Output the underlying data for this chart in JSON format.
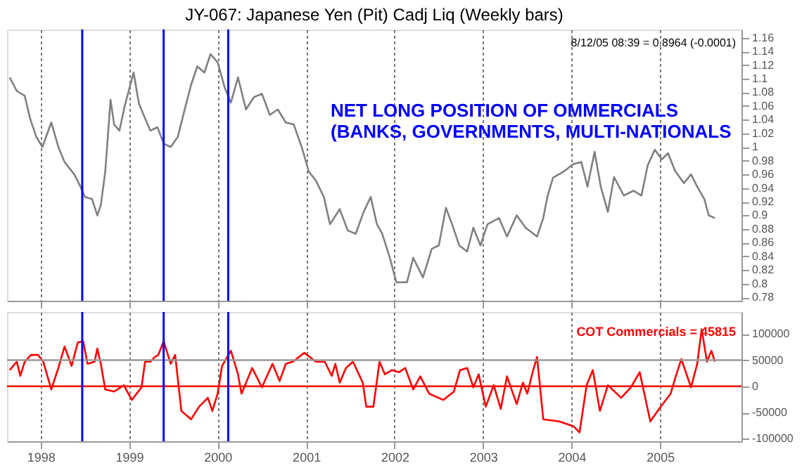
{
  "chart_data": [
    {
      "type": "line",
      "title": "JY-067:  Japanese Yen (Pit) Cadj Liq  (Weekly bars)",
      "annotations": [
        "8/12/05 08:39 = 0.8964 (-0.0001)",
        "NET LONG POSITION OF OMMERCIALS\n  (BANKS, GOVERNMENTS, MULTI-NATIONALS"
      ],
      "x": [
        1997.65,
        1997.73,
        1997.82,
        1997.88,
        1997.95,
        1998.02,
        1998.12,
        1998.2,
        1998.27,
        1998.38,
        1998.45,
        1998.5,
        1998.58,
        1998.64,
        1998.68,
        1998.73,
        1998.79,
        1998.83,
        1998.89,
        1998.95,
        1999.05,
        1999.11,
        1999.18,
        1999.24,
        1999.32,
        1999.39,
        1999.47,
        1999.55,
        1999.62,
        1999.7,
        1999.77,
        1999.85,
        1999.92,
        2000.0,
        2000.08,
        2000.15,
        2000.23,
        2000.32,
        2000.41,
        2000.5,
        2000.59,
        2000.68,
        2000.77,
        2000.86,
        2000.95,
        2001.03,
        2001.11,
        2001.2,
        2001.27,
        2001.38,
        2001.47,
        2001.56,
        2001.65,
        2001.73,
        2001.8,
        2001.86,
        2001.95,
        2002.02,
        2002.14,
        2002.21,
        2002.32,
        2002.42,
        2002.5,
        2002.58,
        2002.65,
        2002.73,
        2002.82,
        2002.89,
        2002.97,
        2003.05,
        2003.18,
        2003.27,
        2003.38,
        2003.48,
        2003.61,
        2003.68,
        2003.73,
        2003.79,
        2003.91,
        2004.02,
        2004.11,
        2004.18,
        2004.26,
        2004.33,
        2004.41,
        2004.48,
        2004.59,
        2004.7,
        2004.79,
        2004.86,
        2004.94,
        2005.02,
        2005.09,
        2005.17,
        2005.27,
        2005.35,
        2005.42,
        2005.5,
        2005.55,
        2005.62
      ],
      "series": [
        {
          "color": "#808080",
          "values": [
            1.102,
            1.082,
            1.075,
            1.042,
            1.015,
            1.0,
            1.036,
            1.0,
            0.978,
            0.96,
            0.942,
            0.927,
            0.924,
            0.9,
            0.915,
            0.964,
            1.069,
            1.033,
            1.024,
            1.06,
            1.109,
            1.064,
            1.042,
            1.024,
            1.029,
            1.005,
            1.0,
            1.015,
            1.051,
            1.091,
            1.118,
            1.109,
            1.136,
            1.124,
            1.087,
            1.065,
            1.102,
            1.055,
            1.073,
            1.078,
            1.047,
            1.055,
            1.036,
            1.033,
            1.0,
            0.964,
            0.951,
            0.927,
            0.887,
            0.909,
            0.878,
            0.873,
            0.905,
            0.927,
            0.887,
            0.873,
            0.836,
            0.802,
            0.802,
            0.838,
            0.809,
            0.851,
            0.856,
            0.911,
            0.887,
            0.856,
            0.847,
            0.882,
            0.856,
            0.887,
            0.896,
            0.869,
            0.9,
            0.882,
            0.869,
            0.896,
            0.929,
            0.955,
            0.964,
            0.975,
            0.978,
            0.942,
            0.993,
            0.942,
            0.905,
            0.956,
            0.929,
            0.936,
            0.929,
            0.973,
            0.996,
            0.982,
            0.991,
            0.965,
            0.947,
            0.96,
            0.942,
            0.924,
            0.9,
            0.896
          ]
        }
      ],
      "xlim": [
        1997.62,
        2005.92
      ],
      "xticks": [
        1998,
        1999,
        2000,
        2001,
        2002,
        2003,
        2004,
        2005
      ],
      "ylim": [
        0.775,
        1.172
      ],
      "yticks": [
        0.78,
        0.8,
        0.82,
        0.84,
        0.86,
        0.88,
        0.9,
        0.92,
        0.94,
        0.96,
        0.98,
        1,
        1.02,
        1.04,
        1.06,
        1.08,
        1.1,
        1.12,
        1.14,
        1.16
      ],
      "tick_labels": "y",
      "grid": "x",
      "ref_lines": [
        {
          "axis": "x",
          "value": 1998.47,
          "color": "#0000ff"
        },
        {
          "axis": "x",
          "value": 1999.39,
          "color": "#0000ff"
        },
        {
          "axis": "x",
          "value": 2000.12,
          "color": "#0000ff"
        }
      ]
    },
    {
      "type": "line",
      "annotations": [
        "COT Commercials = 45815"
      ],
      "x": [
        1997.65,
        1997.73,
        1997.77,
        1997.82,
        1997.89,
        1997.97,
        1998.03,
        1998.12,
        1998.2,
        1998.27,
        1998.35,
        1998.42,
        1998.48,
        1998.53,
        1998.61,
        1998.64,
        1998.68,
        1998.73,
        1998.83,
        1998.94,
        1999.03,
        1999.14,
        1999.18,
        1999.24,
        1999.29,
        1999.33,
        1999.39,
        1999.47,
        1999.52,
        1999.59,
        1999.7,
        1999.79,
        1999.89,
        1999.94,
        2000.0,
        2000.05,
        2000.15,
        2000.23,
        2000.27,
        2000.39,
        2000.5,
        2000.62,
        2000.7,
        2000.77,
        2000.85,
        2000.98,
        2001.11,
        2001.21,
        2001.29,
        2001.33,
        2001.38,
        2001.45,
        2001.53,
        2001.64,
        2001.68,
        2001.76,
        2001.83,
        2001.89,
        2001.97,
        2002.05,
        2002.12,
        2002.21,
        2002.29,
        2002.39,
        2002.55,
        2002.67,
        2002.74,
        2002.82,
        2002.89,
        2002.95,
        2003.03,
        2003.12,
        2003.2,
        2003.27,
        2003.38,
        2003.45,
        2003.5,
        2003.56,
        2003.61,
        2003.68,
        2003.86,
        2004.02,
        2004.09,
        2004.17,
        2004.24,
        2004.32,
        2004.41,
        2004.56,
        2004.67,
        2004.77,
        2004.89,
        2004.99,
        2005.12,
        2005.17,
        2005.24,
        2005.35,
        2005.42,
        2005.47,
        2005.53,
        2005.58,
        2005.62
      ],
      "series": [
        {
          "color": "#ff0000",
          "values": [
            31000,
            47000,
            20000,
            47000,
            60000,
            60000,
            47000,
            -6000,
            35000,
            76000,
            39000,
            84000,
            86000,
            43000,
            47000,
            72000,
            43000,
            -6000,
            -10000,
            2000,
            -26000,
            -2000,
            47000,
            47000,
            56000,
            60000,
            86000,
            43000,
            60000,
            -47000,
            -63000,
            -39000,
            -22000,
            -47000,
            -14000,
            39000,
            68000,
            23000,
            -14000,
            35000,
            -2000,
            43000,
            10000,
            43000,
            47000,
            64000,
            47000,
            47000,
            20000,
            43000,
            7000,
            35000,
            47000,
            7000,
            -39000,
            -39000,
            47000,
            23000,
            31000,
            27000,
            35000,
            -6000,
            19000,
            -14000,
            -26000,
            -10000,
            31000,
            35000,
            -2000,
            23000,
            -39000,
            2000,
            -43000,
            19000,
            -34000,
            7000,
            -14000,
            27000,
            56000,
            -63000,
            -67000,
            -76000,
            -88000,
            2000,
            31000,
            -47000,
            2000,
            -22000,
            -2000,
            27000,
            -67000,
            -43000,
            -14000,
            15000,
            52000,
            -2000,
            43000,
            109000,
            47000,
            68000,
            47000
          ]
        }
      ],
      "xlim": [
        1997.62,
        2005.92
      ],
      "xticks": [
        1998,
        1999,
        2000,
        2001,
        2002,
        2003,
        2004,
        2005
      ],
      "ylim": [
        -105000,
        142000
      ],
      "yticks": [
        -100000,
        -50000,
        0,
        50000,
        100000
      ],
      "grid": "x",
      "ref_lines": [
        {
          "axis": "y",
          "value": 0,
          "color": "#ff0000"
        },
        {
          "axis": "y",
          "value": 50000,
          "color": "#999999"
        },
        {
          "axis": "x",
          "value": 1998.47,
          "color": "#0000ff"
        },
        {
          "axis": "x",
          "value": 1999.39,
          "color": "#0000ff"
        },
        {
          "axis": "x",
          "value": 2000.12,
          "color": "#0000ff"
        }
      ]
    }
  ]
}
